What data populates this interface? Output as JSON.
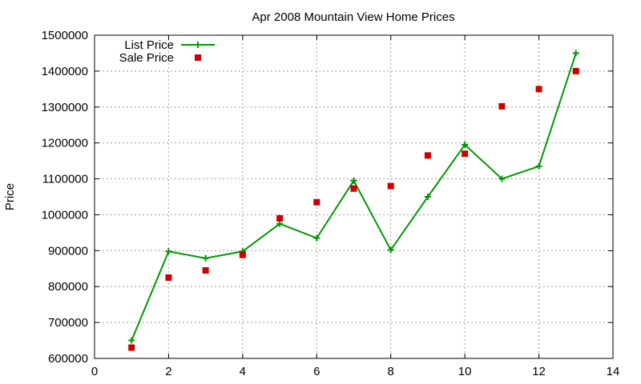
{
  "chart_data": {
    "type": "line",
    "title": "Apr 2008 Mountain View Home Prices",
    "xlabel": "",
    "ylabel": "Price",
    "xlim": [
      0,
      14
    ],
    "ylim": [
      600000,
      1500000
    ],
    "x_ticks": [
      0,
      2,
      4,
      6,
      8,
      10,
      12,
      14
    ],
    "y_ticks": [
      600000,
      700000,
      800000,
      900000,
      1000000,
      1100000,
      1200000,
      1300000,
      1400000,
      1500000
    ],
    "grid": true,
    "legend_position": "top-left",
    "series": [
      {
        "name": "List Price",
        "style": "linespoints",
        "marker": "plus",
        "color": "#009900",
        "x": [
          1,
          2,
          3,
          4,
          5,
          6,
          7,
          8,
          9,
          10,
          11,
          12,
          13
        ],
        "values": [
          650000,
          898000,
          879000,
          898000,
          975000,
          935000,
          1095000,
          902000,
          1050000,
          1195000,
          1100000,
          1135000,
          1450000
        ]
      },
      {
        "name": "Sale Price",
        "style": "points",
        "marker": "square",
        "color": "#cc0000",
        "x": [
          1,
          2,
          3,
          4,
          5,
          6,
          7,
          8,
          9,
          10,
          11,
          12,
          13
        ],
        "values": [
          630000,
          825000,
          845000,
          888000,
          990000,
          1035000,
          1073000,
          1080000,
          1165000,
          1170000,
          1302000,
          1350000,
          1400000
        ]
      }
    ]
  }
}
